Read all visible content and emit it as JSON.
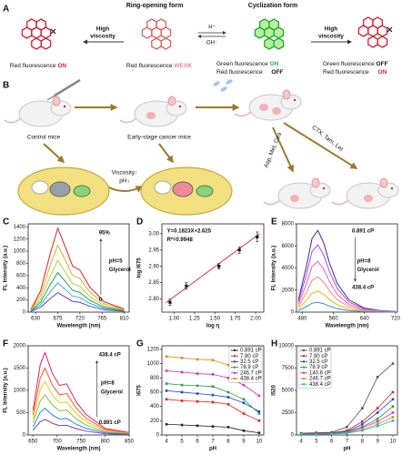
{
  "panel_a": {
    "label": "A",
    "ring_opening_title": "Ring-opening form",
    "cyclization_title": "Cyclization form",
    "high_viscosity_left": [
      "High",
      "viscosity"
    ],
    "high_viscosity_right": [
      "High",
      "viscosity"
    ],
    "acid": "H⁺",
    "base": "OH⁻",
    "forms": [
      {
        "lines": [
          {
            "text": "Red fluorescence",
            "state": "ON"
          }
        ]
      },
      {
        "lines": [
          {
            "text": "Red fluorescence",
            "state": "WEAK"
          }
        ]
      },
      {
        "lines": [
          {
            "text": "Green fluorescence",
            "state": "ON"
          },
          {
            "text": "Red fluorescence",
            "state": "OFF"
          }
        ]
      },
      {
        "lines": [
          {
            "text": "Green fluorescence",
            "state": "OFF"
          },
          {
            "text": "Red fluorescence",
            "state": "ON"
          }
        ]
      }
    ]
  },
  "panel_b": {
    "label": "B",
    "control": "Control mice",
    "cancer": "Early-stage cancer mice",
    "viscosity": "Viscosity↑",
    "ph": "pH↓",
    "treatment_1": "Asp, Met, Cea",
    "treatment_2": "CTX, Tam, Let"
  },
  "chart_data": [
    {
      "type": "line",
      "label": "C",
      "x_label": "Wavelength (nm)",
      "y_label": "FL Intensity (a.u.)",
      "x": [
        620,
        640,
        660,
        675,
        690,
        705,
        720,
        740,
        770,
        810
      ],
      "xlim": [
        615,
        820
      ],
      "xticks": [
        630,
        675,
        720,
        765,
        810
      ],
      "ylim": [
        0,
        1450
      ],
      "yticks": [
        0,
        200,
        400,
        600,
        800,
        1000,
        1200,
        1400
      ],
      "markers": false,
      "annotations": [
        "95%",
        "0",
        "pH=5",
        "Glycerol"
      ],
      "series": [
        {
          "color": "#d62728",
          "values": [
            41,
            345,
            966,
            1380,
            1076,
            759,
            690,
            414,
            166,
            55
          ]
        },
        {
          "color": "#f5a623",
          "values": [
            33,
            275,
            770,
            1100,
            858,
            605,
            550,
            330,
            132,
            44
          ]
        },
        {
          "color": "#b5d334",
          "values": [
            26,
            213,
            595,
            850,
            663,
            468,
            425,
            255,
            102,
            34
          ]
        },
        {
          "color": "#2ca05a",
          "values": [
            20,
            163,
            455,
            650,
            507,
            358,
            325,
            195,
            78,
            26
          ]
        },
        {
          "color": "#26b8d6",
          "values": [
            14,
            120,
            336,
            480,
            374,
            264,
            240,
            144,
            58,
            19
          ]
        },
        {
          "color": "#6a3fc1",
          "values": [
            10,
            80,
            224,
            320,
            250,
            176,
            160,
            96,
            38,
            13
          ]
        }
      ]
    },
    {
      "type": "scatter",
      "label": "D",
      "x_label": "log η",
      "y_label": "log I675",
      "x": [
        0.95,
        1.15,
        1.55,
        1.8,
        2.02
      ],
      "values": [
        2.79,
        2.84,
        2.9,
        2.95,
        2.99
      ],
      "errors": [
        0.01,
        0.01,
        0.008,
        0.01,
        0.015
      ],
      "fit_x": [
        0.9,
        2.05
      ],
      "fit_y": [
        2.789,
        3.0
      ],
      "color": "#d62728",
      "xlim": [
        0.85,
        2.1
      ],
      "xticks": [
        {
          "value": 1,
          "label": "1.00"
        },
        {
          "value": 1.25,
          "label": "1.25"
        },
        {
          "value": 1.5,
          "label": "1.50"
        },
        {
          "value": 1.75,
          "label": "1.75"
        },
        {
          "value": 2,
          "label": "2.00"
        }
      ],
      "ylim": [
        2.76,
        3.03
      ],
      "yticks": [
        {
          "value": 2.8,
          "label": "2.80"
        },
        {
          "value": 2.85,
          "label": "2.85"
        },
        {
          "value": 2.9,
          "label": "2.90"
        },
        {
          "value": 2.95,
          "label": "2.95"
        },
        {
          "value": 3,
          "label": "3.00"
        }
      ],
      "annotations": [
        "Y=0.1823X+2.625",
        "R²=0.9948"
      ]
    },
    {
      "type": "line",
      "label": "E",
      "x_label": "Wavelength (nm)",
      "y_label": "FL Intensity (a.u.)",
      "x": [
        470,
        490,
        505,
        520,
        535,
        550,
        570,
        600,
        640,
        680,
        720
      ],
      "xlim": [
        465,
        725
      ],
      "xticks": [
        480,
        560,
        640,
        720
      ],
      "ylim": [
        0,
        8000
      ],
      "yticks": [
        0,
        2000,
        4000,
        6000,
        8000
      ],
      "markers": false,
      "annotations": [
        "0.891 cP",
        "438.4 cP",
        "pH=8",
        "Glycerol"
      ],
      "series": [
        {
          "color": "#3a2fa0",
          "values": [
            1110,
            4070,
            6660,
            7400,
            6290,
            4440,
            2590,
            1110,
            370,
            148,
            74
          ]
        },
        {
          "color": "#b04cd6",
          "values": [
            915,
            3355,
            5490,
            6100,
            5185,
            3660,
            2135,
            915,
            305,
            122,
            61
          ]
        },
        {
          "color": "#e55fb0",
          "values": [
            690,
            2530,
            4140,
            4600,
            3910,
            2760,
            1610,
            690,
            230,
            92,
            46
          ]
        },
        {
          "color": "#ff7f7f",
          "values": [
            480,
            1760,
            2880,
            3200,
            2720,
            1920,
            1120,
            480,
            160,
            64,
            32
          ]
        },
        {
          "color": "#f4b400",
          "values": [
            285,
            1045,
            1710,
            1900,
            1615,
            1140,
            665,
            285,
            95,
            38,
            19
          ]
        },
        {
          "color": "#2b8fd9",
          "values": [
            135,
            495,
            810,
            900,
            765,
            540,
            315,
            135,
            45,
            18,
            9
          ]
        }
      ]
    },
    {
      "type": "line",
      "label": "F",
      "x_label": "Wavelength (nm)",
      "y_label": "FL Intensity (a.u.)",
      "x": [
        650,
        665,
        675,
        690,
        705,
        720,
        740,
        760,
        800,
        850
      ],
      "xlim": [
        640,
        850
      ],
      "xticks": [
        650,
        700,
        750,
        800,
        850
      ],
      "ylim": [
        0,
        2000
      ],
      "yticks": [
        0,
        500,
        1000,
        1500,
        2000
      ],
      "markers": false,
      "annotations": [
        "438.4 cP",
        "pH=8",
        "Glycerol",
        "0.891 cP"
      ],
      "series": [
        {
          "color": "#e0245e",
          "values": [
            555,
            1573,
            1850,
            1388,
            1110,
            1147,
            740,
            463,
            148,
            56
          ]
        },
        {
          "color": "#ff5722",
          "values": [
            450,
            1275,
            1500,
            1125,
            900,
            930,
            600,
            375,
            120,
            45
          ]
        },
        {
          "color": "#f1c40f",
          "values": [
            360,
            1020,
            1200,
            900,
            720,
            744,
            480,
            300,
            96,
            36
          ]
        },
        {
          "color": "#7cc242",
          "values": [
            270,
            765,
            900,
            675,
            540,
            558,
            360,
            225,
            72,
            27
          ]
        },
        {
          "color": "#1e88e5",
          "values": [
            180,
            510,
            600,
            450,
            360,
            372,
            240,
            150,
            48,
            18
          ]
        },
        {
          "color": "#7b3fb3",
          "values": [
            105,
            298,
            350,
            263,
            210,
            217,
            140,
            88,
            28,
            11
          ]
        }
      ]
    },
    {
      "type": "line",
      "label": "G",
      "x_label": "pH",
      "y_label": "I675",
      "x": [
        4,
        5,
        6,
        7,
        8,
        9,
        10
      ],
      "xlim": [
        3.7,
        10.3
      ],
      "xticks": [
        4,
        5,
        6,
        7,
        8,
        9,
        10
      ],
      "ylim": [
        0,
        1250
      ],
      "yticks": [
        0,
        200,
        400,
        600,
        800,
        1000,
        1200
      ],
      "markers": true,
      "legend": "upper right",
      "series": [
        {
          "name": "0.891 cP",
          "color": "#222222",
          "values": [
            150,
            140,
            130,
            120,
            110,
            60,
            30
          ]
        },
        {
          "name": "7.90 cP",
          "color": "#e02020",
          "values": [
            500,
            480,
            470,
            460,
            430,
            300,
            200
          ]
        },
        {
          "name": "32.5 cP",
          "color": "#2040e0",
          "values": [
            620,
            600,
            580,
            560,
            530,
            450,
            330
          ]
        },
        {
          "name": "78.9 cP",
          "color": "#20a040",
          "values": [
            720,
            700,
            690,
            680,
            600,
            500,
            300
          ]
        },
        {
          "name": "246.7 cP",
          "color": "#d030c0",
          "values": [
            900,
            880,
            860,
            850,
            800,
            700,
            550
          ]
        },
        {
          "name": "438.4 cP",
          "color": "#e08a00",
          "values": [
            1100,
            1080,
            1060,
            1050,
            980,
            900,
            820
          ]
        }
      ]
    },
    {
      "type": "line",
      "label": "H",
      "x_label": "pH",
      "y_label": "I520",
      "x": [
        4,
        5,
        6,
        7,
        8,
        9,
        10
      ],
      "xlim": [
        3.7,
        10.3
      ],
      "xticks": [
        4,
        5,
        6,
        7,
        8,
        9,
        10
      ],
      "ylim": [
        0,
        10000
      ],
      "yticks": [
        0,
        2500,
        5000,
        7500,
        10000
      ],
      "markers": true,
      "legend": "upper left",
      "series": [
        {
          "name": "0.891 cP",
          "color": "#555555",
          "values": [
            200,
            250,
            300,
            900,
            3000,
            6500,
            8000
          ]
        },
        {
          "name": "7.90 cP",
          "color": "#e02020",
          "values": [
            150,
            200,
            250,
            500,
            1500,
            3000,
            4800
          ]
        },
        {
          "name": "32.5 cP",
          "color": "#2040e0",
          "values": [
            120,
            150,
            200,
            400,
            1200,
            2500,
            4000
          ]
        },
        {
          "name": "78.9 cP",
          "color": "#20a040",
          "values": [
            100,
            130,
            180,
            350,
            900,
            1800,
            3200
          ]
        },
        {
          "name": "140.6 cP",
          "color": "#d030c0",
          "values": [
            90,
            110,
            150,
            300,
            800,
            1500,
            2500
          ]
        },
        {
          "name": "246.7 cP",
          "color": "#e08a00",
          "values": [
            80,
            100,
            130,
            250,
            600,
            1200,
            2000
          ]
        },
        {
          "name": "438.4 cP",
          "color": "#20b8c8",
          "values": [
            70,
            90,
            110,
            200,
            500,
            1000,
            1600
          ]
        }
      ]
    }
  ]
}
